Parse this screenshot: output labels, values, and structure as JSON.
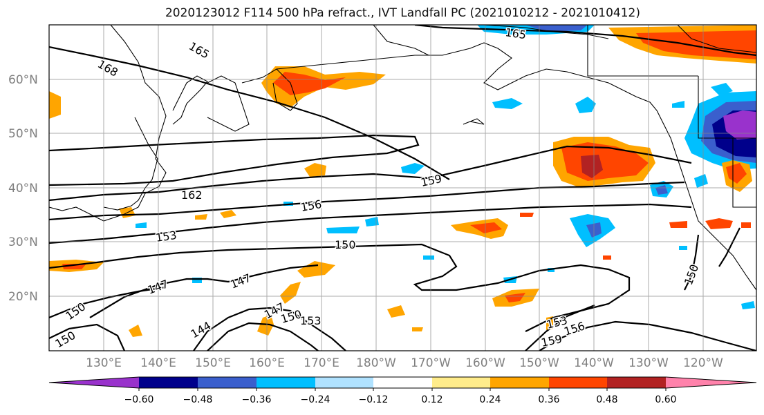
{
  "title": "2020123012 F114 500 hPa refract., IVT Landfall PC (2021010212 - 2021010412)",
  "map": {
    "lat_labels": [
      "60°N",
      "50°N",
      "40°N",
      "30°N",
      "20°N"
    ],
    "lon_labels": [
      "130°E",
      "140°E",
      "150°E",
      "160°E",
      "170°E",
      "180°W",
      "170°W",
      "160°W",
      "150°W",
      "140°W",
      "130°W",
      "120°W"
    ],
    "contour_labels": [
      "165",
      "165",
      "168",
      "162",
      "159",
      "156",
      "153",
      "150",
      "147",
      "147",
      "150",
      "144",
      "147",
      "150",
      "153",
      "153",
      "156",
      "159",
      "150",
      "150"
    ]
  },
  "colorbar": {
    "colors": [
      "#9932cc",
      "#00008b",
      "#3a5fcd",
      "#00bfff",
      "#b0e2ff",
      "#ffffff",
      "#ffec8b",
      "#ffa500",
      "#ff4500",
      "#b22222",
      "#ff82ab"
    ],
    "tick_labels": [
      "−0.60",
      "−0.48",
      "−0.36",
      "−0.24",
      "−0.12",
      "0.12",
      "0.24",
      "0.36",
      "0.48",
      "0.60"
    ]
  }
}
